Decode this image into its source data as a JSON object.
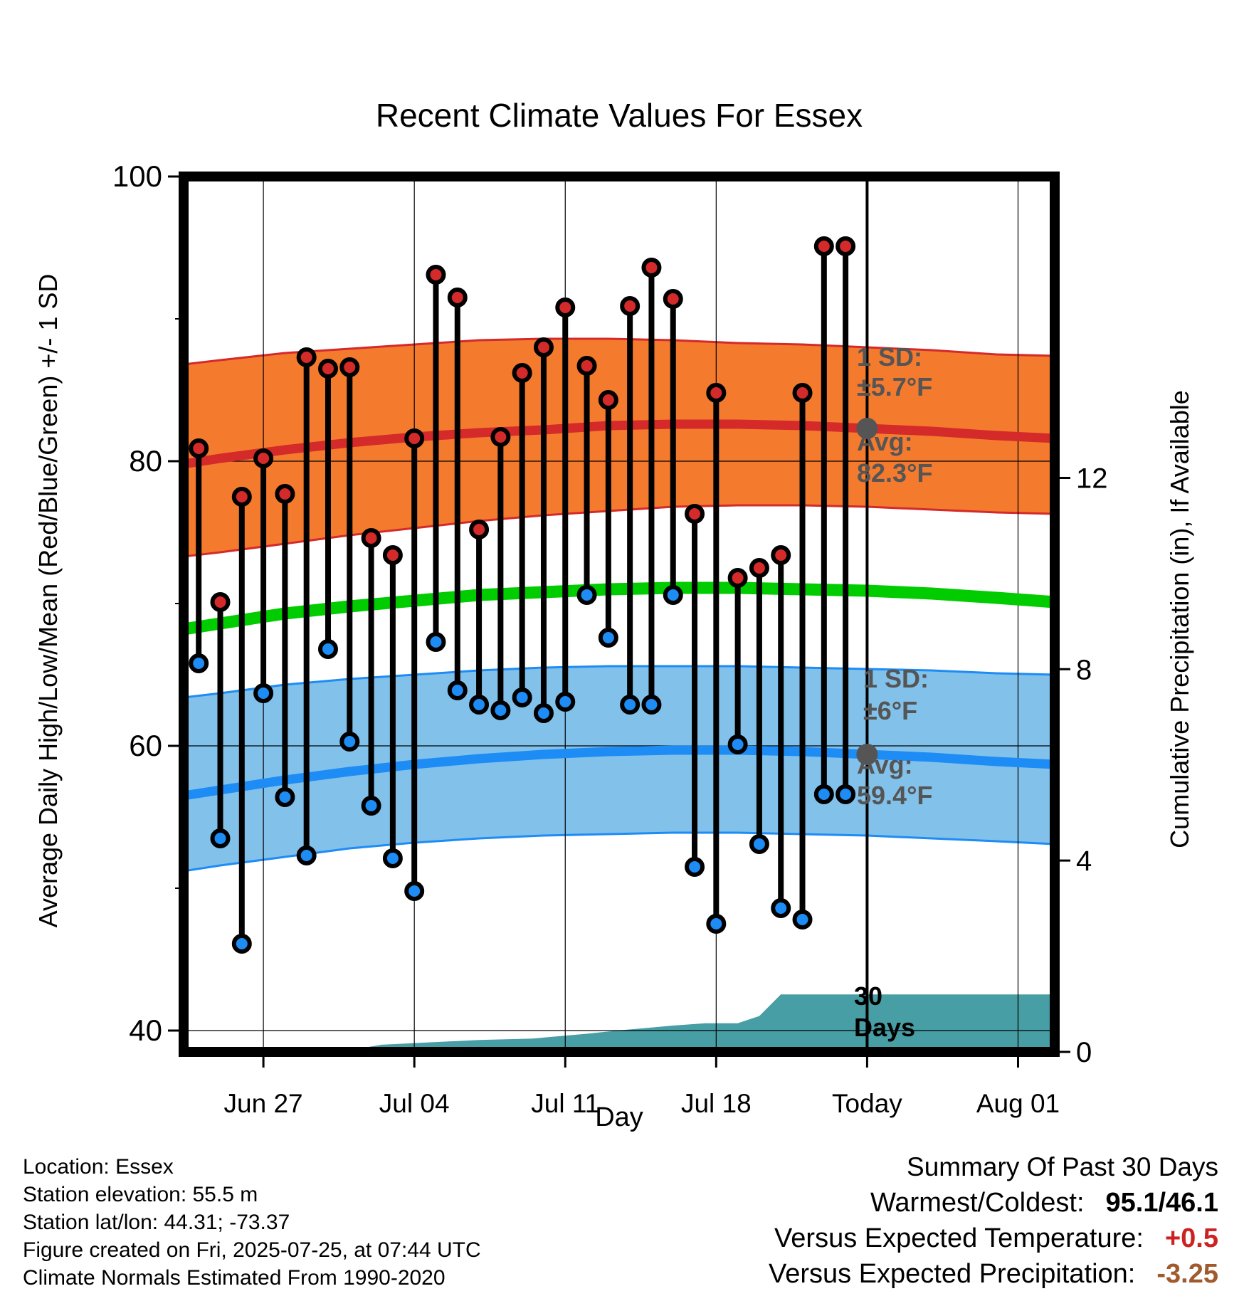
{
  "chart_data": {
    "type": "line",
    "title": "Recent Climate Values For Essex",
    "xlabel": "Day",
    "ylabel": "Average Daily High/Low/Mean (Red/Blue/Green) +/- 1 SD",
    "y2label": "Cumulative Precipitation (in), If Available",
    "ylim": [
      38.5,
      100
    ],
    "y2lim": [
      0,
      18.3
    ],
    "xlim": [
      -1.7,
      38.7
    ],
    "xticks": [
      {
        "x": 2,
        "label": "Jun 27"
      },
      {
        "x": 9,
        "label": "Jul 04"
      },
      {
        "x": 16,
        "label": "Jul 11"
      },
      {
        "x": 23,
        "label": "Jul 18"
      },
      {
        "x": 30,
        "label": "Today"
      },
      {
        "x": 37,
        "label": "Aug 01"
      }
    ],
    "yticks": [
      {
        "y": 40,
        "label": "40"
      },
      {
        "y": 60,
        "label": "60"
      },
      {
        "y": 80,
        "label": "80"
      },
      {
        "y": 100,
        "label": "100"
      }
    ],
    "y_minor_ticks": [
      50,
      70,
      90
    ],
    "y2ticks": [
      {
        "y": 0,
        "label": "0"
      },
      {
        "y": 4,
        "label": "4"
      },
      {
        "y": 8,
        "label": "8"
      },
      {
        "y": 12,
        "label": "12"
      }
    ],
    "grid": true,
    "normals_days": [
      -1.7,
      0,
      3,
      6,
      9,
      12,
      15,
      18,
      21,
      24,
      27,
      30,
      33,
      36,
      38.7
    ],
    "series": [
      {
        "name": "Average Daily High",
        "color": "#d42a2a",
        "values": [
          79.8,
          80.2,
          80.8,
          81.3,
          81.7,
          82.0,
          82.2,
          82.5,
          82.6,
          82.6,
          82.5,
          82.3,
          82.1,
          81.8,
          81.6
        ]
      },
      {
        "name": "Average Daily Low",
        "color": "#1e8cf5",
        "values": [
          56.5,
          56.9,
          57.6,
          58.2,
          58.7,
          59.1,
          59.4,
          59.6,
          59.7,
          59.7,
          59.6,
          59.4,
          59.2,
          58.9,
          58.7
        ]
      },
      {
        "name": "Average Daily Mean",
        "color": "#00cc00",
        "values": [
          68.2,
          68.6,
          69.3,
          69.8,
          70.2,
          70.6,
          70.8,
          71.0,
          71.1,
          71.1,
          71.0,
          70.9,
          70.7,
          70.4,
          70.1
        ]
      },
      {
        "name": "High SD Upper",
        "color": "#f47a2e",
        "values": [
          86.8,
          87.1,
          87.6,
          87.9,
          88.2,
          88.5,
          88.6,
          88.6,
          88.5,
          88.3,
          88.2,
          88.0,
          87.8,
          87.5,
          87.4
        ]
      },
      {
        "name": "High SD Lower",
        "color": "#f47a2e",
        "values": [
          73.3,
          73.6,
          74.2,
          74.8,
          75.3,
          75.8,
          76.2,
          76.5,
          76.8,
          76.9,
          76.9,
          76.8,
          76.6,
          76.4,
          76.3
        ]
      },
      {
        "name": "Low SD Upper",
        "color": "#82c1ea",
        "values": [
          63.4,
          63.7,
          64.3,
          64.7,
          65.0,
          65.3,
          65.5,
          65.6,
          65.6,
          65.6,
          65.5,
          65.4,
          65.3,
          65.1,
          65.0
        ]
      },
      {
        "name": "Low SD Lower",
        "color": "#82c1ea",
        "values": [
          51.2,
          51.6,
          52.2,
          52.8,
          53.2,
          53.5,
          53.7,
          53.8,
          53.9,
          53.9,
          53.8,
          53.7,
          53.5,
          53.3,
          53.1
        ]
      }
    ],
    "daily_days": [
      -1,
      0,
      1,
      2,
      3,
      4,
      5,
      6,
      7,
      8,
      9,
      10,
      11,
      12,
      13,
      14,
      15,
      16,
      17,
      18,
      19,
      20,
      21,
      22,
      23,
      24,
      25,
      26,
      27,
      28,
      29
    ],
    "daily_highs": [
      80.9,
      70.1,
      77.5,
      80.2,
      77.7,
      87.3,
      86.5,
      86.6,
      74.6,
      73.4,
      81.6,
      93.1,
      91.5,
      75.2,
      81.7,
      86.2,
      88.0,
      90.8,
      86.7,
      84.3,
      90.9,
      93.6,
      91.4,
      76.3,
      84.8,
      71.8,
      72.5,
      73.4,
      84.8,
      95.1,
      95.1
    ],
    "daily_lows": [
      65.8,
      53.5,
      46.1,
      63.7,
      56.4,
      52.3,
      66.8,
      60.3,
      55.8,
      52.1,
      49.8,
      67.3,
      63.9,
      62.9,
      62.5,
      63.4,
      62.3,
      63.1,
      70.6,
      67.6,
      62.9,
      62.9,
      70.6,
      51.5,
      47.5,
      60.1,
      53.1,
      48.6,
      47.8,
      56.6,
      56.6
    ],
    "today": {
      "x": 30,
      "high_avg": 82.3,
      "low_avg": 59.4
    },
    "precip_cumulative": {
      "x": [
        -1.7,
        5.5,
        7.5,
        12,
        14.5,
        17,
        18.5,
        21,
        22.5,
        24,
        25,
        26,
        38.7
      ],
      "values": [
        0,
        0,
        0.15,
        0.25,
        0.28,
        0.38,
        0.45,
        0.55,
        0.6,
        0.6,
        0.75,
        1.2,
        1.2
      ]
    },
    "annotations": {
      "high_sd_label": "1 SD:",
      "high_sd_value": "±5.7°F",
      "high_avg_label": "Avg:",
      "high_avg_value": "82.3°F",
      "low_sd_label": "1 SD:",
      "low_sd_value": "±6°F",
      "low_avg_label": "Avg:",
      "low_avg_value": "59.4°F",
      "days_number": "30",
      "days_word": "Days"
    }
  },
  "footer": {
    "location": "Location: Essex",
    "elevation": "Station elevation: 55.5 m",
    "latlon": "Station lat/lon: 44.31; -73.37",
    "created": "Figure created on Fri, 2025-07-25, at 07:44 UTC",
    "normals": "Climate Normals Estimated From 1990-2020"
  },
  "summary": {
    "title": "Summary Of Past 30 Days",
    "warmest_label": "Warmest/Coldest:",
    "warmest_value": "95.1/46.1",
    "temp_label": "Versus Expected Temperature:",
    "temp_value": "+0.5",
    "precip_label": "Versus Expected Precipitation:",
    "precip_value": "-3.25"
  }
}
